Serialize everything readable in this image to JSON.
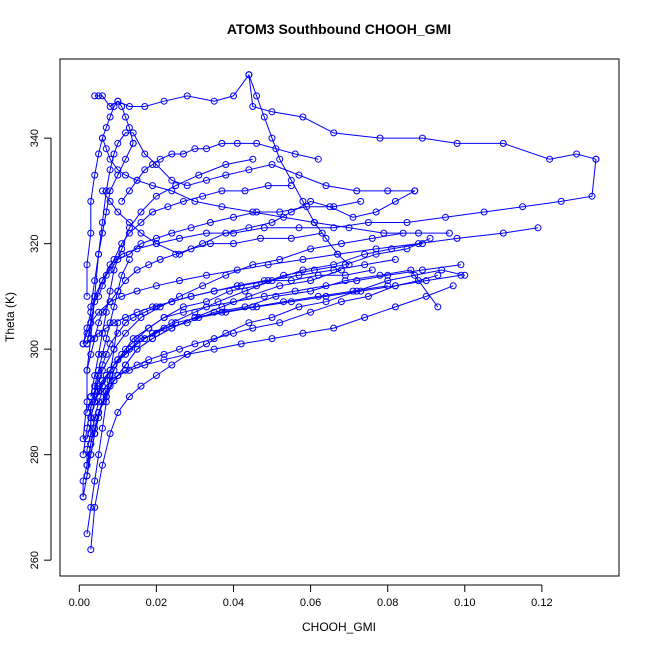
{
  "chart_data": {
    "type": "line",
    "title": "ATOM3 Southbound CHOOH_GMI",
    "xlabel": "CHOOH_GMI",
    "ylabel": "Theta (K)",
    "xlim": [
      -0.005,
      0.14
    ],
    "ylim": [
      257,
      355
    ],
    "x_ticks": [
      0.0,
      0.02,
      0.04,
      0.06,
      0.08,
      0.1,
      0.12
    ],
    "x_tick_labels": [
      "0.00",
      "0.02",
      "0.04",
      "0.06",
      "0.08",
      "0.10",
      "0.12"
    ],
    "y_ticks": [
      260,
      280,
      300,
      320,
      340
    ],
    "y_tick_labels": [
      "260",
      "280",
      "300",
      "320",
      "340"
    ],
    "grid": false,
    "color": "#0000ff",
    "series": [
      {
        "x": [
          0.002,
          0.003,
          0.004,
          0.005,
          0.006,
          0.008,
          0.01,
          0.012,
          0.015,
          0.018,
          0.022,
          0.026,
          0.03,
          0.035,
          0.04,
          0.045,
          0.052,
          0.06,
          0.068,
          0.075,
          0.082,
          0.088,
          0.093
        ],
        "y": [
          276,
          282,
          287,
          290,
          292,
          294,
          295,
          296,
          297,
          298,
          299,
          300,
          301,
          302,
          303,
          304,
          305,
          307,
          309,
          310,
          312,
          313,
          314
        ]
      },
      {
        "x": [
          0.003,
          0.004,
          0.006,
          0.008,
          0.01,
          0.013,
          0.016,
          0.02,
          0.024,
          0.028,
          0.033,
          0.038,
          0.044,
          0.05,
          0.057,
          0.064,
          0.072,
          0.08,
          0.087,
          0.094,
          0.1
        ],
        "y": [
          262,
          270,
          278,
          284,
          288,
          291,
          293,
          295,
          297,
          299,
          301,
          303,
          305,
          306,
          308,
          309,
          311,
          313,
          314,
          315,
          314
        ]
      },
      {
        "x": [
          0.001,
          0.002,
          0.003,
          0.005,
          0.007,
          0.009,
          0.012,
          0.015,
          0.019,
          0.024,
          0.03,
          0.036,
          0.043,
          0.05,
          0.058,
          0.066,
          0.074,
          0.081,
          0.089
        ],
        "y": [
          280,
          285,
          289,
          292,
          295,
          297,
          299,
          301,
          303,
          305,
          307,
          309,
          311,
          313,
          315,
          316,
          318,
          319,
          320
        ]
      },
      {
        "x": [
          0.004,
          0.005,
          0.007,
          0.009,
          0.011,
          0.014,
          0.018,
          0.022,
          0.027,
          0.033,
          0.039,
          0.046,
          0.053,
          0.061,
          0.069,
          0.077,
          0.085,
          0.091
        ],
        "y": [
          284,
          288,
          292,
          296,
          299,
          302,
          304,
          306,
          308,
          309,
          311,
          312,
          314,
          315,
          316,
          318,
          319,
          321
        ]
      },
      {
        "x": [
          0.002,
          0.004,
          0.006,
          0.009,
          0.012,
          0.016,
          0.021,
          0.026,
          0.032,
          0.038,
          0.045,
          0.052,
          0.06,
          0.068,
          0.076,
          0.084
        ],
        "y": [
          288,
          292,
          296,
          300,
          303,
          306,
          308,
          310,
          312,
          314,
          316,
          317,
          319,
          320,
          321,
          322
        ]
      },
      {
        "x": [
          0.001,
          0.002,
          0.003,
          0.005,
          0.008,
          0.011,
          0.015,
          0.02,
          0.026,
          0.033,
          0.041,
          0.049,
          0.058,
          0.067,
          0.077,
          0.088,
          0.098,
          0.11,
          0.119
        ],
        "y": [
          301,
          303,
          305,
          307,
          309,
          310,
          311,
          312,
          313,
          314,
          315,
          316,
          317,
          318,
          319,
          320,
          321,
          322,
          323
        ]
      },
      {
        "x": [
          0.002,
          0.003,
          0.004,
          0.006,
          0.008,
          0.011,
          0.015,
          0.02,
          0.026,
          0.033,
          0.04,
          0.048,
          0.057,
          0.066,
          0.075,
          0.085,
          0.095,
          0.105,
          0.115,
          0.125,
          0.133,
          0.134
        ],
        "y": [
          301,
          305,
          309,
          313,
          316,
          318,
          319,
          320,
          321,
          322,
          322,
          323,
          323,
          323,
          324,
          324,
          325,
          326,
          327,
          328,
          329,
          336
        ]
      },
      {
        "x": [
          0.134,
          0.129,
          0.122,
          0.11,
          0.098,
          0.089,
          0.078,
          0.066,
          0.058,
          0.05,
          0.045,
          0.044
        ],
        "y": [
          336,
          337,
          336,
          339,
          339,
          340,
          340,
          341,
          344,
          345,
          346,
          352
        ]
      },
      {
        "x": [
          0.044,
          0.04,
          0.035,
          0.028,
          0.022,
          0.017,
          0.013,
          0.01,
          0.008,
          0.006,
          0.005,
          0.004
        ],
        "y": [
          352,
          348,
          347,
          348,
          347,
          346,
          346,
          347,
          346,
          348,
          348,
          348
        ]
      },
      {
        "x": [
          0.003,
          0.004,
          0.005,
          0.006,
          0.007,
          0.008,
          0.009,
          0.01,
          0.012,
          0.014,
          0.017,
          0.02,
          0.024,
          0.028,
          0.033,
          0.038,
          0.044,
          0.05,
          0.057,
          0.064,
          0.072,
          0.08,
          0.087
        ],
        "y": [
          302,
          310,
          318,
          324,
          330,
          334,
          337,
          339,
          341,
          341,
          337,
          335,
          332,
          331,
          332,
          333,
          334,
          335,
          333,
          331,
          330,
          330,
          330
        ]
      },
      {
        "x": [
          0.087,
          0.082,
          0.077,
          0.071,
          0.065,
          0.06,
          0.055,
          0.05,
          0.044,
          0.038,
          0.032,
          0.026,
          0.02,
          0.016,
          0.013,
          0.01,
          0.008,
          0.006
        ],
        "y": [
          330,
          328,
          326,
          325,
          327,
          328,
          326,
          324,
          323,
          322,
          320,
          318,
          320,
          322,
          324,
          326,
          328,
          330
        ]
      },
      {
        "x": [
          0.001,
          0.002,
          0.003,
          0.004,
          0.005,
          0.006,
          0.008,
          0.01,
          0.013,
          0.017,
          0.022,
          0.028,
          0.035,
          0.042,
          0.05,
          0.058,
          0.066,
          0.074,
          0.082,
          0.09,
          0.097
        ],
        "y": [
          272,
          276,
          280,
          284,
          287,
          290,
          293,
          295,
          296,
          297,
          298,
          299,
          300,
          301,
          302,
          303,
          304,
          306,
          308,
          310,
          312
        ]
      },
      {
        "x": [
          0.002,
          0.003,
          0.004,
          0.005,
          0.007,
          0.009,
          0.012,
          0.015,
          0.019,
          0.024,
          0.03,
          0.037,
          0.045,
          0.053,
          0.062,
          0.071,
          0.08
        ],
        "y": [
          278,
          282,
          285,
          288,
          291,
          294,
          297,
          300,
          302,
          304,
          306,
          307,
          308,
          309,
          310,
          311,
          312
        ]
      },
      {
        "x": [
          0.003,
          0.004,
          0.006,
          0.008,
          0.01,
          0.013,
          0.017,
          0.022,
          0.028,
          0.035,
          0.043,
          0.051,
          0.06,
          0.069,
          0.078,
          0.086,
          0.093
        ],
        "y": [
          287,
          290,
          293,
          296,
          298,
          300,
          302,
          304,
          305,
          307,
          308,
          310,
          311,
          313,
          314,
          315,
          308
        ]
      },
      {
        "x": [
          0.001,
          0.002,
          0.003,
          0.004,
          0.006,
          0.008,
          0.01,
          0.013,
          0.016,
          0.02,
          0.024,
          0.029,
          0.034,
          0.04,
          0.046,
          0.052,
          0.059,
          0.066,
          0.073
        ],
        "y": [
          301,
          304,
          307,
          310,
          313,
          315,
          317,
          318,
          320,
          321,
          322,
          323,
          324,
          325,
          326,
          326,
          327,
          327,
          328
        ]
      },
      {
        "x": [
          0.006,
          0.007,
          0.008,
          0.01,
          0.012,
          0.015,
          0.019,
          0.024,
          0.03,
          0.037,
          0.045,
          0.053,
          0.061,
          0.07,
          0.079,
          0.088,
          0.096
        ],
        "y": [
          340,
          338,
          336,
          334,
          333,
          332,
          331,
          330,
          328,
          327,
          326,
          325,
          324,
          323,
          322,
          322,
          322
        ]
      },
      {
        "x": [
          0.003,
          0.004,
          0.005,
          0.006,
          0.007,
          0.008,
          0.009,
          0.011,
          0.013,
          0.016,
          0.02,
          0.025,
          0.031,
          0.038,
          0.045
        ],
        "y": [
          291,
          295,
          299,
          303,
          307,
          311,
          315,
          319,
          323,
          326,
          329,
          331,
          333,
          335,
          336
        ]
      },
      {
        "x": [
          0.003,
          0.004,
          0.005,
          0.007,
          0.009,
          0.012,
          0.015,
          0.019,
          0.024,
          0.03,
          0.037,
          0.044,
          0.052,
          0.06,
          0.068
        ],
        "y": [
          280,
          284,
          288,
          291,
          294,
          297,
          300,
          302,
          304,
          306,
          308,
          310,
          312,
          313,
          315
        ]
      },
      {
        "x": [
          0.004,
          0.005,
          0.006,
          0.008,
          0.01,
          0.012,
          0.015,
          0.018,
          0.022,
          0.027,
          0.033,
          0.04,
          0.048,
          0.056,
          0.064,
          0.072,
          0.08,
          0.089,
          0.099
        ],
        "y": [
          290,
          292,
          294,
          296,
          298,
          300,
          302,
          304,
          306,
          307,
          308,
          309,
          310,
          311,
          312,
          313,
          314,
          315,
          316
        ]
      },
      {
        "x": [
          0.001,
          0.002,
          0.002,
          0.003,
          0.003,
          0.004,
          0.005,
          0.006,
          0.007,
          0.008,
          0.01,
          0.012,
          0.014
        ],
        "y": [
          283,
          290,
          296,
          302,
          308,
          313,
          318,
          322,
          326,
          330,
          333,
          336,
          339
        ]
      },
      {
        "x": [
          0.014,
          0.013,
          0.012,
          0.011,
          0.01,
          0.009,
          0.008,
          0.007,
          0.006,
          0.005,
          0.004,
          0.003,
          0.003,
          0.002,
          0.002
        ],
        "y": [
          339,
          342,
          344,
          346,
          347,
          346,
          344,
          342,
          340,
          337,
          333,
          328,
          322,
          316,
          310
        ]
      },
      {
        "x": [
          0.002,
          0.003,
          0.004,
          0.005,
          0.006,
          0.008,
          0.01,
          0.012,
          0.015,
          0.018,
          0.021,
          0.025,
          0.029,
          0.034,
          0.04,
          0.047,
          0.055,
          0.063
        ],
        "y": [
          296,
          299,
          302,
          305,
          307,
          309,
          311,
          313,
          315,
          316,
          317,
          318,
          319,
          320,
          320,
          321,
          321,
          322
        ]
      },
      {
        "x": [
          0.005,
          0.006,
          0.007,
          0.009,
          0.011,
          0.013,
          0.016,
          0.019,
          0.023,
          0.027,
          0.032,
          0.037,
          0.043,
          0.049,
          0.055
        ],
        "y": [
          310,
          312,
          314,
          317,
          320,
          322,
          324,
          326,
          327,
          328,
          329,
          330,
          330,
          331,
          331
        ]
      },
      {
        "x": [
          0.002,
          0.003,
          0.003,
          0.004,
          0.005,
          0.006,
          0.007,
          0.008,
          0.01,
          0.012,
          0.014,
          0.017,
          0.02,
          0.024,
          0.029,
          0.035,
          0.042,
          0.049,
          0.057,
          0.066,
          0.074,
          0.082
        ],
        "y": [
          283,
          286,
          289,
          292,
          295,
          297,
          299,
          301,
          303,
          305,
          306,
          307,
          308,
          309,
          310,
          311,
          312,
          313,
          314,
          315,
          316,
          317
        ]
      },
      {
        "x": [
          0.001,
          0.001,
          0.002,
          0.002,
          0.003,
          0.003,
          0.004,
          0.004,
          0.005,
          0.006,
          0.007,
          0.008,
          0.009,
          0.01,
          0.011,
          0.013
        ],
        "y": [
          272,
          275,
          278,
          281,
          284,
          287,
          290,
          293,
          296,
          299,
          302,
          305,
          308,
          311,
          314,
          317
        ]
      },
      {
        "x": [
          0.003,
          0.004,
          0.005,
          0.006,
          0.008,
          0.01,
          0.013,
          0.016,
          0.02,
          0.025,
          0.031,
          0.038,
          0.046,
          0.055,
          0.064,
          0.073,
          0.082,
          0.09,
          0.099
        ],
        "y": [
          291,
          292,
          293,
          294,
          296,
          298,
          300,
          302,
          303,
          305,
          306,
          307,
          308,
          309,
          310,
          311,
          312,
          313,
          314
        ]
      },
      {
        "x": [
          0.011,
          0.013,
          0.015,
          0.017,
          0.019,
          0.021,
          0.024,
          0.027,
          0.03,
          0.033,
          0.037,
          0.041,
          0.046,
          0.051,
          0.056,
          0.062
        ],
        "y": [
          328,
          330,
          332,
          334,
          335,
          336,
          337,
          337,
          338,
          338,
          339,
          339,
          339,
          338,
          337,
          336
        ]
      },
      {
        "x": [
          0.044,
          0.046,
          0.048,
          0.05,
          0.052,
          0.055,
          0.058,
          0.061,
          0.064,
          0.067,
          0.07
        ],
        "y": [
          352,
          348,
          344,
          340,
          336,
          332,
          328,
          324,
          321,
          318,
          316
        ]
      },
      {
        "x": [
          0.002,
          0.003,
          0.005,
          0.007,
          0.009,
          0.012,
          0.015,
          0.019,
          0.024,
          0.029,
          0.035,
          0.041,
          0.048,
          0.055,
          0.062,
          0.069,
          0.076
        ],
        "y": [
          301,
          302,
          303,
          304,
          305,
          306,
          307,
          308,
          309,
          310,
          311,
          312,
          313,
          313,
          314,
          314,
          315
        ]
      },
      {
        "x": [
          0.002,
          0.003,
          0.004,
          0.005,
          0.006,
          0.007,
          0.008,
          0.009,
          0.01
        ],
        "y": [
          265,
          270,
          275,
          280,
          285,
          290,
          295,
          300,
          305
        ]
      }
    ]
  }
}
